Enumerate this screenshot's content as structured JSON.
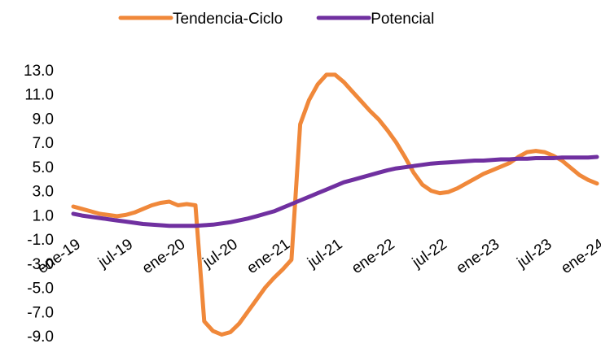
{
  "chart_data": {
    "type": "line",
    "categories": [
      "ene-19",
      null,
      null,
      null,
      null,
      null,
      "jul-19",
      null,
      null,
      null,
      null,
      null,
      "ene-20",
      null,
      null,
      null,
      null,
      null,
      "jul-20",
      null,
      null,
      null,
      null,
      null,
      "ene-21",
      null,
      null,
      null,
      null,
      null,
      "jul-21",
      null,
      null,
      null,
      null,
      null,
      "ene-22",
      null,
      null,
      null,
      null,
      null,
      "jul-22",
      null,
      null,
      null,
      null,
      null,
      "ene-23",
      null,
      null,
      null,
      null,
      null,
      "jul-23",
      null,
      null,
      null,
      null,
      null,
      "ene-24"
    ],
    "series": [
      {
        "name": "Tendencia-Ciclo",
        "color": "#f0883a",
        "values": [
          1.7,
          1.5,
          1.3,
          1.1,
          1.0,
          0.9,
          1.0,
          1.2,
          1.5,
          1.8,
          2.0,
          2.1,
          1.8,
          1.9,
          1.8,
          -7.8,
          -8.6,
          -8.9,
          -8.7,
          -8.0,
          -7.0,
          -6.0,
          -5.0,
          -4.2,
          -3.5,
          -2.7,
          8.5,
          10.5,
          11.8,
          12.6,
          12.6,
          12.0,
          11.2,
          10.4,
          9.6,
          8.9,
          8.0,
          7.0,
          5.8,
          4.5,
          3.5,
          3.0,
          2.8,
          2.9,
          3.2,
          3.6,
          4.0,
          4.4,
          4.7,
          5.0,
          5.3,
          5.8,
          6.2,
          6.3,
          6.2,
          5.9,
          5.5,
          4.9,
          4.3,
          3.9,
          3.6
        ]
      },
      {
        "name": "Potencial",
        "color": "#7030a0",
        "values": [
          1.1,
          0.95,
          0.85,
          0.75,
          0.65,
          0.55,
          0.45,
          0.35,
          0.25,
          0.2,
          0.15,
          0.1,
          0.1,
          0.1,
          0.1,
          0.15,
          0.2,
          0.3,
          0.4,
          0.55,
          0.7,
          0.9,
          1.1,
          1.3,
          1.6,
          1.9,
          2.2,
          2.5,
          2.8,
          3.1,
          3.4,
          3.7,
          3.9,
          4.1,
          4.3,
          4.5,
          4.7,
          4.85,
          4.95,
          5.05,
          5.15,
          5.25,
          5.3,
          5.35,
          5.4,
          5.45,
          5.5,
          5.5,
          5.55,
          5.6,
          5.6,
          5.65,
          5.65,
          5.7,
          5.7,
          5.7,
          5.75,
          5.75,
          5.75,
          5.75,
          5.8
        ]
      }
    ],
    "ylim": [
      -9,
      13
    ],
    "yticks": [
      {
        "value": 13,
        "label": "13.0"
      },
      {
        "value": 11,
        "label": "11.0"
      },
      {
        "value": 9,
        "label": "9.0"
      },
      {
        "value": 7,
        "label": "7.0"
      },
      {
        "value": 5,
        "label": "5.0"
      },
      {
        "value": 3,
        "label": "3.0"
      },
      {
        "value": 1,
        "label": "1.0"
      },
      {
        "value": -1,
        "label": "-1.0"
      },
      {
        "value": -3,
        "label": "-3.0"
      },
      {
        "value": -5,
        "label": "-5.0"
      },
      {
        "value": -7,
        "label": "-7.0"
      },
      {
        "value": -9,
        "label": "-9.0"
      }
    ],
    "grid": false
  }
}
